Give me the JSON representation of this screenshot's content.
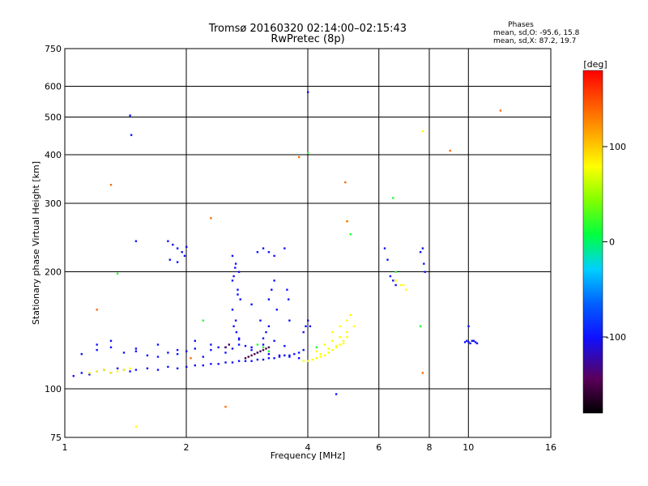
{
  "header": {
    "title_line1": "Tromsø 20160320 02:14:00–02:15:43",
    "title_line2": "RwPretec (8p)",
    "phases_title": "Phases",
    "phases_o": "mean, sd,O: -95.6, 15.8",
    "phases_x": "mean, sd,X:  87.2, 19.7"
  },
  "chart_data": {
    "type": "scatter",
    "title": "Tromsø 20160320 02:14:00–02:15:43",
    "subtitle": "RwPretec (8p)",
    "xlabel": "Frequency [MHz]",
    "ylabel": "Stationary phase Virtual Height [km]",
    "x_scale": "log",
    "y_scale": "log",
    "xlim": [
      1,
      16
    ],
    "ylim": [
      75,
      750
    ],
    "x_ticks": [
      1,
      2,
      4,
      6,
      8,
      10,
      16
    ],
    "y_ticks": [
      75,
      100,
      200,
      300,
      400,
      500,
      600,
      750
    ],
    "grid": true,
    "colorbar": {
      "label": "[deg]",
      "range": [
        -180,
        180
      ],
      "ticks": [
        -100,
        0,
        100
      ]
    },
    "series": [
      {
        "color_value": -100,
        "x": [
          1.05,
          1.1,
          1.15,
          1.2,
          1.25,
          1.3,
          1.35,
          1.4,
          1.45,
          1.5,
          1.6,
          1.7,
          1.8,
          1.9,
          2.0,
          2.1,
          2.2,
          2.3,
          2.4,
          2.5,
          2.6,
          2.7,
          2.8,
          2.9,
          3.0,
          3.1,
          3.2,
          3.3,
          3.4,
          3.5,
          3.6,
          3.7,
          3.8,
          3.9,
          1.1,
          1.2,
          1.3,
          1.4,
          1.5,
          1.6,
          1.7,
          1.8,
          1.9,
          2.0,
          2.1,
          2.2,
          2.3,
          2.4,
          2.5,
          2.6,
          2.7,
          2.8,
          2.9,
          3.0,
          3.2,
          3.4,
          3.6,
          3.8,
          1.2,
          1.3,
          1.5,
          1.7,
          1.9,
          2.1,
          2.3,
          2.5,
          2.7,
          2.9,
          3.1,
          3.3,
          3.5,
          1.8,
          1.85,
          1.9,
          1.95,
          2.0,
          1.82,
          1.9,
          1.98,
          2.6,
          2.65,
          2.7,
          2.6,
          2.68,
          2.72,
          2.6,
          2.65,
          2.62,
          2.66,
          2.7,
          2.64,
          2.62,
          2.68,
          3.0,
          3.1,
          3.2,
          3.3,
          2.9,
          3.05,
          3.2,
          3.15,
          3.1,
          3.2,
          3.25,
          3.3,
          3.35,
          3.5,
          3.6,
          3.55,
          3.58,
          3.9,
          3.95,
          4.0,
          4.05,
          6.2,
          6.3,
          6.4,
          6.5,
          6.6,
          7.6,
          7.7,
          7.75,
          7.8,
          9.8,
          9.9,
          10.0,
          10.1,
          10.2,
          10.3,
          10.4,
          10.5,
          10.0,
          4.0,
          1.45,
          1.46,
          1.5,
          4.7
        ],
        "y": [
          108,
          110,
          109,
          111,
          112,
          110,
          113,
          112,
          111,
          112,
          113,
          112,
          114,
          113,
          114,
          115,
          115,
          116,
          116,
          117,
          117,
          118,
          118,
          118,
          119,
          119,
          120,
          120,
          121,
          122,
          122,
          123,
          124,
          126,
          123,
          126,
          128,
          124,
          125,
          122,
          121,
          124,
          123,
          125,
          127,
          121,
          126,
          128,
          124,
          127,
          130,
          129,
          126,
          124,
          123,
          122,
          121,
          120,
          130,
          133,
          127,
          130,
          126,
          133,
          130,
          128,
          134,
          128,
          130,
          133,
          129,
          240,
          235,
          230,
          225,
          232,
          215,
          212,
          220,
          220,
          210,
          200,
          190,
          180,
          170,
          160,
          150,
          145,
          140,
          135,
          205,
          195,
          175,
          225,
          230,
          225,
          220,
          165,
          150,
          145,
          140,
          135,
          170,
          180,
          190,
          160,
          230,
          150,
          180,
          170,
          140,
          145,
          150,
          145,
          230,
          215,
          195,
          190,
          185,
          225,
          230,
          210,
          200,
          132,
          133,
          132,
          131,
          133,
          133,
          132,
          131,
          145,
          580,
          505,
          450,
          240,
          97
        ]
      },
      {
        "color_value": 100,
        "x": [
          1.15,
          1.2,
          1.25,
          1.3,
          1.35,
          1.4,
          1.45,
          3.9,
          4.0,
          4.1,
          4.2,
          4.3,
          4.4,
          4.5,
          4.6,
          4.7,
          4.8,
          4.9,
          5.0,
          4.2,
          4.4,
          4.6,
          4.8,
          5.0,
          4.3,
          4.5,
          4.7,
          4.9,
          4.6,
          4.8,
          5.0,
          5.1,
          5.2,
          6.8,
          7.7,
          6.6,
          6.9,
          7.0,
          5.0,
          1.5
        ],
        "y": [
          110,
          111,
          112,
          110,
          111,
          112,
          113,
          118,
          118,
          119,
          120,
          121,
          122,
          124,
          126,
          128,
          130,
          133,
          136,
          125,
          130,
          133,
          136,
          140,
          123,
          127,
          129,
          131,
          140,
          145,
          150,
          155,
          145,
          185,
          460,
          190,
          185,
          180,
          270,
          80
        ]
      },
      {
        "color_value": 150,
        "x": [
          1.2,
          2.05,
          2.3,
          2.5,
          3.8,
          4.95,
          5.0,
          7.7,
          9.0,
          12.0,
          1.3
        ],
        "y": [
          160,
          120,
          275,
          90,
          395,
          340,
          270,
          110,
          410,
          520,
          335
        ]
      },
      {
        "color_value": 10,
        "x": [
          1.35,
          2.2,
          3.0,
          3.1,
          3.2,
          4.0,
          4.2,
          5.1,
          6.5,
          6.6,
          7.6
        ],
        "y": [
          198,
          150,
          130,
          128,
          125,
          405,
          128,
          250,
          310,
          200,
          145
        ]
      },
      {
        "color_value": -150,
        "x": [
          2.8,
          2.85,
          2.9,
          2.95,
          3.0,
          3.05,
          3.1,
          3.15,
          3.2,
          2.5,
          2.55
        ],
        "y": [
          120,
          121,
          122,
          123,
          124,
          125,
          126,
          127,
          128,
          128,
          130
        ]
      }
    ]
  }
}
